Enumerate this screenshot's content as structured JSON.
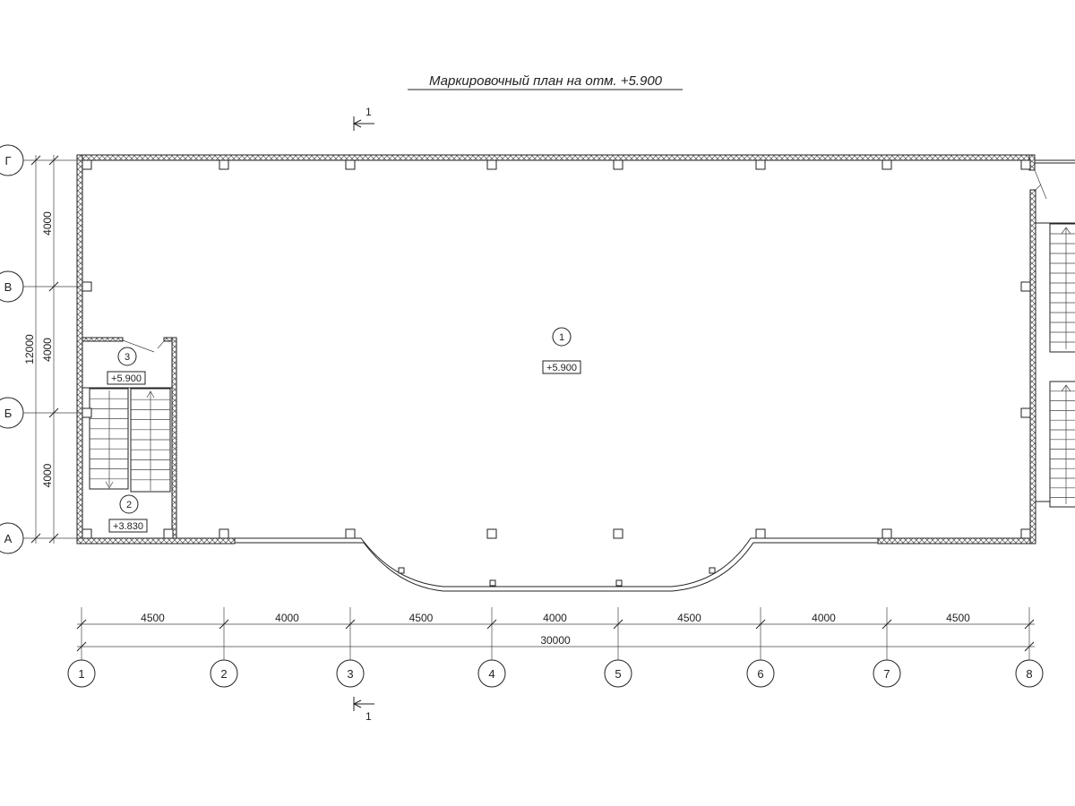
{
  "title": "Маркировочный план на отм. +5.900",
  "section_mark": {
    "label": "1"
  },
  "grid_rows": [
    "Г",
    "В",
    "Б",
    "А"
  ],
  "grid_columns": [
    "1",
    "2",
    "3",
    "4",
    "5",
    "6",
    "7",
    "8"
  ],
  "dims_left": {
    "total": "12000",
    "segments": [
      "4000",
      "4000",
      "4000"
    ]
  },
  "dims_bottom": {
    "total": "30000",
    "segments": [
      "4500",
      "4000",
      "4500",
      "4000",
      "4500",
      "4000",
      "4500"
    ]
  },
  "rooms": [
    {
      "number": "1",
      "elevation": "+5.900"
    },
    {
      "number": "3",
      "elevation": "+5.900"
    },
    {
      "number": "2",
      "elevation": "+3.830"
    }
  ]
}
